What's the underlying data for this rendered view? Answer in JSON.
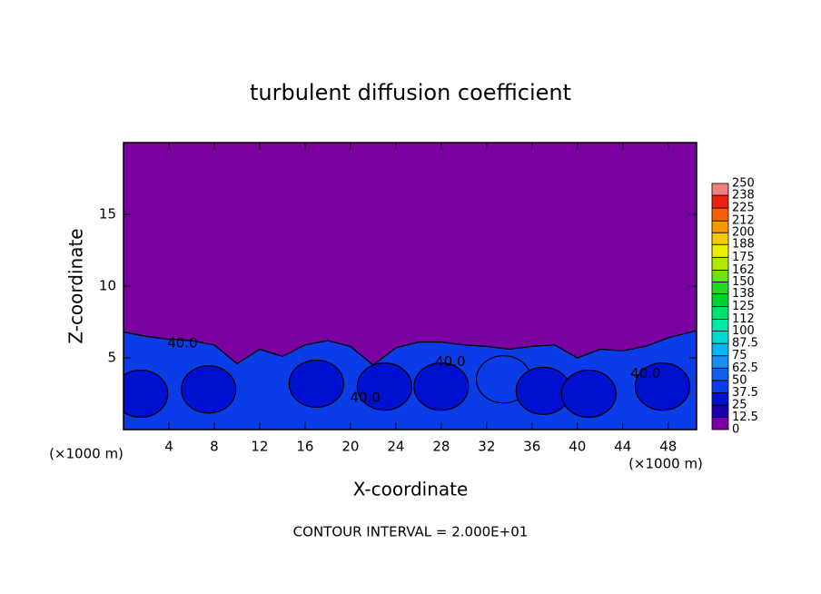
{
  "chart_data": {
    "type": "contour",
    "title": "turbulent diffusion coefficient",
    "x_label": "X-coordinate",
    "y_label": "Z-coordinate",
    "x_unit_left": "(×1000 m)",
    "x_unit_right": "(×1000 m)",
    "annotation": "CONTOUR INTERVAL = 2.000E+01",
    "xlim": [
      0,
      50.5
    ],
    "ylim": [
      0,
      20
    ],
    "xticks": [
      4,
      8,
      12,
      16,
      20,
      24,
      28,
      32,
      36,
      40,
      44,
      48
    ],
    "yticks": [
      5,
      10,
      15
    ],
    "background_color": "#7b00a0",
    "layer_color": "#0a3ce8",
    "boundary": {
      "x": [
        0,
        2,
        4,
        6,
        8,
        10,
        12,
        14,
        16,
        18,
        20,
        22,
        24,
        26,
        28,
        30,
        32,
        34,
        36,
        38,
        40,
        42,
        44,
        46,
        48,
        50.5
      ],
      "z": [
        6.8,
        6.5,
        6.3,
        6.2,
        5.9,
        4.6,
        5.6,
        5.1,
        5.9,
        6.2,
        5.8,
        4.5,
        5.7,
        6.1,
        6.1,
        5.9,
        5.8,
        5.6,
        5.8,
        5.9,
        5.0,
        5.6,
        5.5,
        5.8,
        6.4,
        6.9
      ]
    },
    "cells": [
      {
        "x": 1.5,
        "z": 2.5,
        "value": 25
      },
      {
        "x": 7.5,
        "z": 2.8,
        "value": 30
      },
      {
        "x": 17,
        "z": 3.2,
        "value": 25
      },
      {
        "x": 23,
        "z": 3.0,
        "value": 35
      },
      {
        "x": 28,
        "z": 3.0,
        "value": 25
      },
      {
        "x": 33.5,
        "z": 3.5,
        "value": 45
      },
      {
        "x": 37,
        "z": 2.7,
        "value": 30
      },
      {
        "x": 41,
        "z": 2.5,
        "value": 25
      },
      {
        "x": 47.5,
        "z": 3.0,
        "value": 30
      }
    ],
    "contour_labels": [
      {
        "x": 5.2,
        "z": 6.0,
        "value": 40,
        "label": "40.0"
      },
      {
        "x": 28.8,
        "z": 4.7,
        "value": 40,
        "label": "40.0"
      },
      {
        "x": 46,
        "z": 3.9,
        "value": 40,
        "label": "40.0"
      },
      {
        "x": 21.3,
        "z": 2.2,
        "value": 40,
        "label": "40.0"
      }
    ],
    "colorbar": {
      "levels": [
        0,
        12.5,
        25,
        37.5,
        50,
        62.5,
        75,
        87.5,
        100,
        112,
        125,
        138,
        150,
        162,
        175,
        188,
        200,
        212,
        225,
        238,
        250
      ],
      "colors": [
        "#7b00a0",
        "#1a00a8",
        "#0010d0",
        "#0a3ce8",
        "#1060f0",
        "#1890f8",
        "#00b8f0",
        "#00d8d0",
        "#00e8a8",
        "#00e070",
        "#00d030",
        "#20d820",
        "#70e010",
        "#b0e800",
        "#e8f000",
        "#f8c800",
        "#f89800",
        "#f86000",
        "#f02010",
        "#f08080"
      ]
    }
  }
}
